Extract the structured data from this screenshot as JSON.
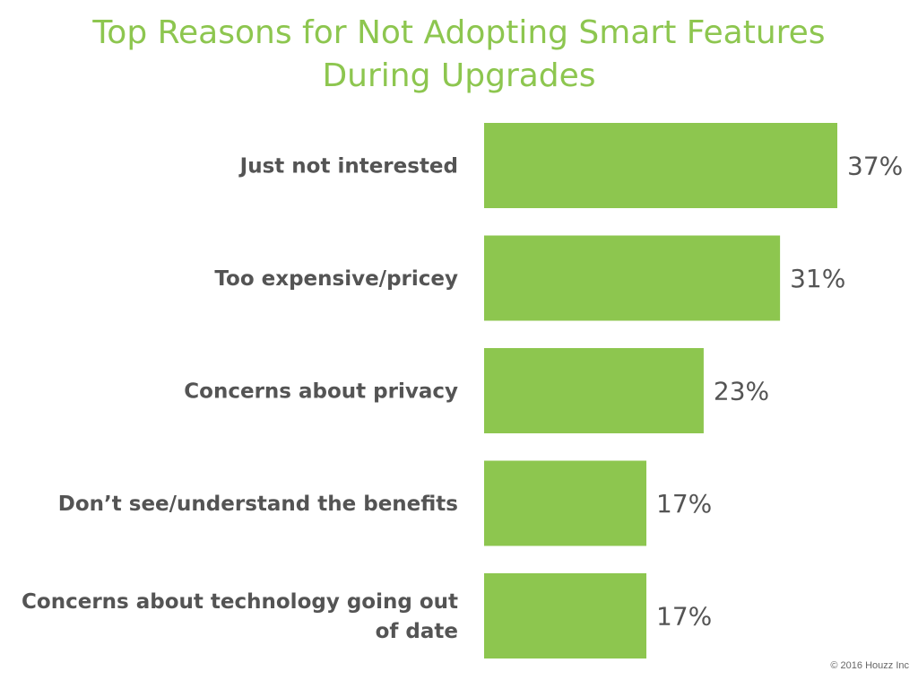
{
  "chart_data": {
    "type": "bar",
    "orientation": "horizontal",
    "title": "Top Reasons for Not Adopting Smart Features During Upgrades",
    "title_lines": [
      "Top Reasons for Not Adopting Smart Features",
      "During Upgrades"
    ],
    "categories": [
      [
        "Just not interested"
      ],
      [
        "Too expensive/pricey"
      ],
      [
        "Concerns about privacy"
      ],
      [
        "Don’t see/understand the benefits"
      ],
      [
        "Concerns about technology going out",
        "of date"
      ]
    ],
    "values": [
      37,
      31,
      23,
      17,
      17
    ],
    "value_labels": [
      "37%",
      "31%",
      "23%",
      "17%",
      "17%"
    ],
    "unit": "%",
    "xlim": [
      0,
      37
    ],
    "xlabel": "",
    "ylabel": "",
    "grid": false,
    "legend": "none",
    "bar_color": "#8dc64f",
    "label_color": "#545454"
  },
  "footer": "© 2016 Houzz Inc"
}
